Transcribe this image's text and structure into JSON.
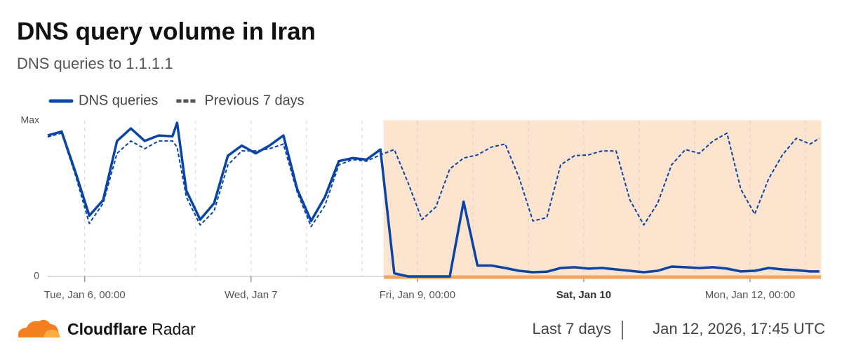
{
  "chart_data": {
    "type": "line",
    "title": "DNS query volume in Iran",
    "subtitle": "DNS queries to 1.1.1.1",
    "x": [
      "Jan 5, 16:00",
      "Jan 5, 19:00",
      "Jan 5, 22:00",
      "Jan 6, 01:00",
      "Jan 6, 04:00",
      "Jan 6, 07:00",
      "Jan 6, 10:00",
      "Jan 6, 13:00",
      "Jan 6, 16:00",
      "Jan 6, 19:00",
      "Jan 6, 20:00",
      "Jan 6, 22:00",
      "Jan 7, 01:00",
      "Jan 7, 04:00",
      "Jan 7, 07:00",
      "Jan 7, 10:00",
      "Jan 7, 13:00",
      "Jan 7, 16:00",
      "Jan 7, 19:00",
      "Jan 7, 22:00",
      "Jan 8, 01:00",
      "Jan 8, 04:00",
      "Jan 8, 07:00",
      "Jan 8, 10:00",
      "Jan 8, 13:00",
      "Jan 8, 16:00",
      "Jan 8, 19:00",
      "Jan 8, 22:00",
      "Jan 9, 01:00",
      "Jan 9, 04:00",
      "Jan 9, 07:00",
      "Jan 9, 10:00",
      "Jan 9, 13:00",
      "Jan 9, 16:00",
      "Jan 9, 19:00",
      "Jan 9, 22:00",
      "Jan 10, 01:00",
      "Jan 10, 04:00",
      "Jan 10, 07:00",
      "Jan 10, 10:00",
      "Jan 10, 13:00",
      "Jan 10, 16:00",
      "Jan 10, 19:00",
      "Jan 10, 22:00",
      "Jan 11, 01:00",
      "Jan 11, 04:00",
      "Jan 11, 07:00",
      "Jan 11, 10:00",
      "Jan 11, 13:00",
      "Jan 11, 16:00",
      "Jan 11, 19:00",
      "Jan 11, 22:00",
      "Jan 12, 01:00",
      "Jan 12, 04:00",
      "Jan 12, 07:00",
      "Jan 12, 10:00",
      "Jan 12, 13:00",
      "Jan 12, 15:00"
    ],
    "series": [
      {
        "name": "DNS queries",
        "color": "#0a45a6",
        "style": "solid",
        "values": [
          90.5,
          93,
          67,
          39,
          49,
          87,
          95,
          87,
          90.5,
          90,
          98.6,
          55,
          36.5,
          47,
          77.5,
          84,
          79,
          84,
          90.5,
          56,
          35.6,
          51,
          74,
          76,
          75,
          81.5,
          2,
          0,
          0,
          0,
          0,
          48,
          7,
          7,
          5.4,
          3.6,
          2.7,
          3,
          5.4,
          5.9,
          5,
          5.4,
          4.5,
          3.6,
          2.7,
          3.6,
          6.3,
          5.9,
          5.4,
          5.9,
          5,
          3.2,
          3.6,
          5.4,
          4.5,
          4,
          3.2,
          3.2
        ]
      },
      {
        "name": "Previous 7 days",
        "color": "#0a45a6",
        "style": "dashed",
        "values": [
          89.6,
          92,
          65,
          34,
          47,
          79,
          87,
          82,
          87,
          87,
          83,
          51,
          33,
          42,
          71.6,
          80.6,
          80.6,
          82,
          85,
          54,
          32,
          45.5,
          71.6,
          75,
          74,
          78,
          81.5,
          60,
          36.5,
          44.6,
          69,
          76,
          78,
          83,
          85,
          63.5,
          35.6,
          37.8,
          71.6,
          77.5,
          78,
          80.6,
          80.6,
          49,
          33,
          47,
          71.6,
          81.5,
          79,
          87,
          92,
          56,
          40,
          62.6,
          78,
          88.7,
          85,
          88.7
        ]
      }
    ],
    "xlim": [
      "Jan 5, 16:00",
      "Jan 12, 15:20"
    ],
    "xticks": [
      {
        "value": "Jan 6, 00:00",
        "label": "Tue, Jan 6, 00:00"
      },
      {
        "value": "Jan 7, 12:00",
        "label": "Wed, Jan 7"
      },
      {
        "value": "Jan 9, 00:00",
        "label": "Fri, Jan 9, 00:00"
      },
      {
        "value": "Jan 10, 12:00",
        "label": "Sat, Jan 10",
        "bold": true
      },
      {
        "value": "Jan 12, 00:00",
        "label": "Mon, Jan 12, 00:00"
      }
    ],
    "ylim": [
      0,
      100
    ],
    "yticks": [
      0,
      {
        "value": 100,
        "label": "Max"
      }
    ],
    "grid": true,
    "shaded_region": {
      "from": "Jan 8, 16:45",
      "to": "Jan 12, 15:20",
      "color": "#fde4cf",
      "edge_color": "#f5a35c"
    }
  },
  "footer": {
    "brand": "Cloudflare",
    "product": "Radar",
    "range": "Last 7 days",
    "timestamp": "Jan 12, 2026, 17:45 UTC"
  }
}
